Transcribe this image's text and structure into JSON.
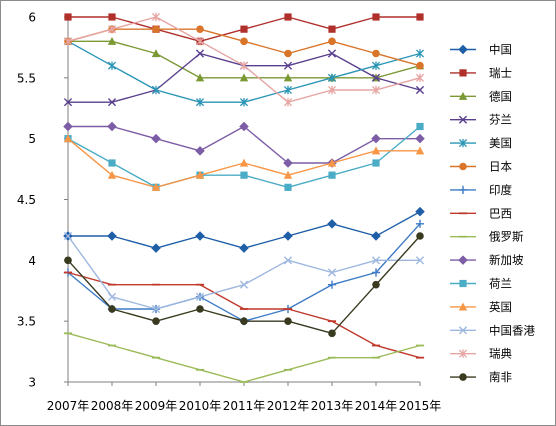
{
  "chart_data": {
    "type": "line",
    "title": "",
    "xlabel": "",
    "ylabel": "",
    "categories": [
      "2007年",
      "2008年",
      "2009年",
      "2010年",
      "2011年",
      "2012年",
      "2013年",
      "2014年",
      "2015年"
    ],
    "ylim": [
      3,
      6
    ],
    "yticks": [
      "3",
      "3.5",
      "4",
      "4.5",
      "5",
      "5.5",
      "6"
    ],
    "grid": false,
    "legend_position": "right",
    "series": [
      {
        "name": "中国",
        "color": "#1f5fa8",
        "marker": "diamond",
        "values": [
          4.2,
          4.2,
          4.1,
          4.2,
          4.1,
          4.2,
          4.3,
          4.2,
          4.4
        ]
      },
      {
        "name": "瑞士",
        "color": "#b0302b",
        "marker": "square",
        "values": [
          6.0,
          6.0,
          5.9,
          5.8,
          5.9,
          6.0,
          5.9,
          6.0,
          6.0
        ]
      },
      {
        "name": "德国",
        "color": "#7b9a35",
        "marker": "triangle",
        "values": [
          5.8,
          5.8,
          5.7,
          5.5,
          5.5,
          5.5,
          5.5,
          5.5,
          5.6
        ]
      },
      {
        "name": "芬兰",
        "color": "#5a3f8e",
        "marker": "x",
        "values": [
          5.3,
          5.3,
          5.4,
          5.7,
          5.6,
          5.6,
          5.7,
          5.5,
          5.4
        ]
      },
      {
        "name": "美国",
        "color": "#2b95b5",
        "marker": "star",
        "values": [
          5.8,
          5.6,
          5.4,
          5.3,
          5.3,
          5.4,
          5.5,
          5.6,
          5.7
        ]
      },
      {
        "name": "日本",
        "color": "#d9752a",
        "marker": "circle",
        "values": [
          5.8,
          5.9,
          5.9,
          5.9,
          5.8,
          5.7,
          5.8,
          5.7,
          5.6
        ]
      },
      {
        "name": "印度",
        "color": "#3d7bc6",
        "marker": "plus",
        "values": [
          3.9,
          3.6,
          3.6,
          3.7,
          3.5,
          3.6,
          3.8,
          3.9,
          4.3
        ]
      },
      {
        "name": "巴西",
        "color": "#c0392b",
        "marker": "dash",
        "values": [
          3.9,
          3.8,
          3.8,
          3.8,
          3.6,
          3.6,
          3.5,
          3.3,
          3.2
        ]
      },
      {
        "name": "俄罗斯",
        "color": "#9bbb59",
        "marker": "dash",
        "values": [
          3.4,
          3.3,
          3.2,
          3.1,
          3.0,
          3.1,
          3.2,
          3.2,
          3.3
        ]
      },
      {
        "name": "新加坡",
        "color": "#7d5da6",
        "marker": "diamond",
        "values": [
          5.1,
          5.1,
          5.0,
          4.9,
          5.1,
          4.8,
          4.8,
          5.0,
          5.0
        ]
      },
      {
        "name": "荷兰",
        "color": "#4bacc6",
        "marker": "square",
        "values": [
          5.0,
          4.8,
          4.6,
          4.7,
          4.7,
          4.6,
          4.7,
          4.8,
          5.1
        ]
      },
      {
        "name": "英国",
        "color": "#f79646",
        "marker": "triangle",
        "values": [
          5.0,
          4.7,
          4.6,
          4.7,
          4.8,
          4.7,
          4.8,
          4.9,
          4.9
        ]
      },
      {
        "name": "中国香港",
        "color": "#9db7e0",
        "marker": "x",
        "values": [
          4.2,
          3.7,
          3.6,
          3.7,
          3.8,
          4.0,
          3.9,
          4.0,
          4.0
        ]
      },
      {
        "name": "瑞典",
        "color": "#e6a5a3",
        "marker": "star",
        "values": [
          5.8,
          5.9,
          6.0,
          5.8,
          5.6,
          5.3,
          5.4,
          5.4,
          5.5
        ]
      },
      {
        "name": "南非",
        "color": "#3a3a20",
        "marker": "circle",
        "values": [
          4.0,
          3.6,
          3.5,
          3.6,
          3.5,
          3.5,
          3.4,
          3.8,
          4.2
        ]
      }
    ]
  }
}
